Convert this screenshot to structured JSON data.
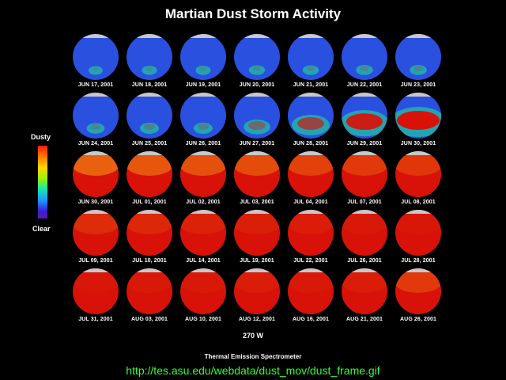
{
  "title": "Martian Dust Storm Activity",
  "legend": {
    "top_label": "Dusty",
    "bottom_label": "Clear"
  },
  "longitude_label": "270 W",
  "instrument_label": "Thermal Emission Spectrometer",
  "url_text": "http://tes.asu.edu/webdata/dust_mov/dust_frame.gif",
  "colors": {
    "clear": "#2a50e0",
    "moderate": "#20c8a0",
    "dusty": "#d81208",
    "polar_cap": "#c8c8c8",
    "url_text": "#33ff33"
  },
  "frames": [
    {
      "date": "JUN 17, 2001",
      "dust": 0.05
    },
    {
      "date": "JUN 18, 2001",
      "dust": 0.06
    },
    {
      "date": "JUN 19, 2001",
      "dust": 0.06
    },
    {
      "date": "JUN 20, 2001",
      "dust": 0.07
    },
    {
      "date": "JUN 21, 2001",
      "dust": 0.07
    },
    {
      "date": "JUN 22, 2001",
      "dust": 0.08
    },
    {
      "date": "JUN 23, 2001",
      "dust": 0.08
    },
    {
      "date": "JUN 24, 2001",
      "dust": 0.09
    },
    {
      "date": "JUN 25, 2001",
      "dust": 0.1
    },
    {
      "date": "JUN 26, 2001",
      "dust": 0.1
    },
    {
      "date": "JUN 27, 2001",
      "dust": 0.18
    },
    {
      "date": "JUN 28, 2001",
      "dust": 0.3
    },
    {
      "date": "JUN 29, 2001",
      "dust": 0.42
    },
    {
      "date": "JUN 30, 2001",
      "dust": 0.5
    },
    {
      "date": "JUN 30, 2001",
      "dust": 0.7
    },
    {
      "date": "JUL 01, 2001",
      "dust": 0.74
    },
    {
      "date": "JUL 02, 2001",
      "dust": 0.76
    },
    {
      "date": "JUL 03, 2001",
      "dust": 0.78
    },
    {
      "date": "JUL 04, 2001",
      "dust": 0.82
    },
    {
      "date": "JUL 07, 2001",
      "dust": 0.85
    },
    {
      "date": "JUL 08, 2001",
      "dust": 0.86
    },
    {
      "date": "JUL 09, 2001",
      "dust": 0.9
    },
    {
      "date": "JUL 10, 2001",
      "dust": 0.92
    },
    {
      "date": "JUL 14, 2001",
      "dust": 0.94
    },
    {
      "date": "JUL 19, 2001",
      "dust": 0.95
    },
    {
      "date": "JUL 22, 2001",
      "dust": 0.96
    },
    {
      "date": "JUL 26, 2001",
      "dust": 0.97
    },
    {
      "date": "JUL 28, 2001",
      "dust": 0.98
    },
    {
      "date": "JUL 31, 2001",
      "dust": 0.98
    },
    {
      "date": "AUG 03, 2001",
      "dust": 0.97
    },
    {
      "date": "AUG 10, 2001",
      "dust": 0.97
    },
    {
      "date": "AUG 12, 2001",
      "dust": 0.96
    },
    {
      "date": "AUG 16, 2001",
      "dust": 0.97
    },
    {
      "date": "AUG 21, 2001",
      "dust": 0.96
    },
    {
      "date": "AUG 26, 2001",
      "dust": 0.85
    }
  ]
}
